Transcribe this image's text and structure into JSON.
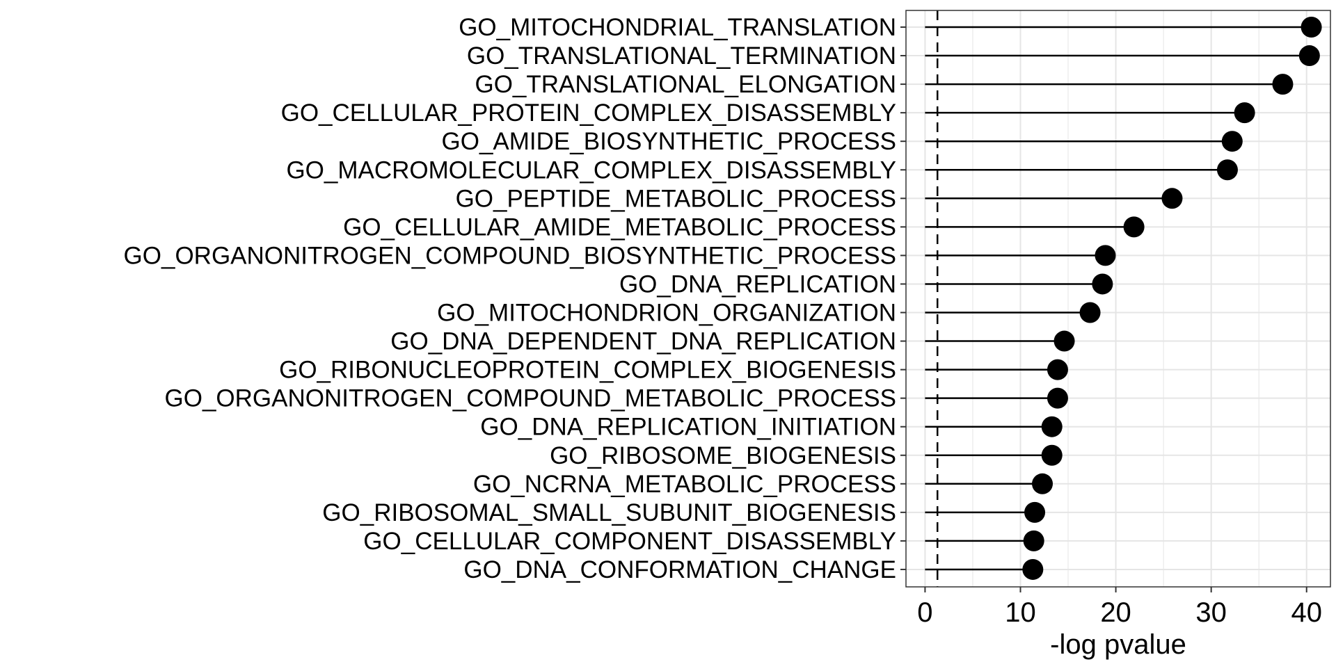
{
  "chart_data": {
    "type": "lollipop",
    "title": "",
    "xlabel": "-log pvalue",
    "ylabel": "",
    "xlim": [
      -2,
      42.5
    ],
    "x_ticks": [
      0,
      10,
      20,
      30,
      40
    ],
    "x_tick_labels": [
      "0",
      "10",
      "20",
      "30",
      "40"
    ],
    "grid": true,
    "reference_line": {
      "x": 1.3,
      "style": "dashed"
    },
    "categories": [
      "GO_MITOCHONDRIAL_TRANSLATION",
      "GO_TRANSLATIONAL_TERMINATION",
      "GO_TRANSLATIONAL_ELONGATION",
      "GO_CELLULAR_PROTEIN_COMPLEX_DISASSEMBLY",
      "GO_AMIDE_BIOSYNTHETIC_PROCESS",
      "GO_MACROMOLECULAR_COMPLEX_DISASSEMBLY",
      "GO_PEPTIDE_METABOLIC_PROCESS",
      "GO_CELLULAR_AMIDE_METABOLIC_PROCESS",
      "GO_ORGANONITROGEN_COMPOUND_BIOSYNTHETIC_PROCESS",
      "GO_DNA_REPLICATION",
      "GO_MITOCHONDRION_ORGANIZATION",
      "GO_DNA_DEPENDENT_DNA_REPLICATION",
      "GO_RIBONUCLEOPROTEIN_COMPLEX_BIOGENESIS",
      "GO_ORGANONITROGEN_COMPOUND_METABOLIC_PROCESS",
      "GO_DNA_REPLICATION_INITIATION",
      "GO_RIBOSOME_BIOGENESIS",
      "GO_NCRNA_METABOLIC_PROCESS",
      "GO_RIBOSOMAL_SMALL_SUBUNIT_BIOGENESIS",
      "GO_CELLULAR_COMPONENT_DISASSEMBLY",
      "GO_DNA_CONFORMATION_CHANGE"
    ],
    "values": [
      40.5,
      40.3,
      37.5,
      33.5,
      32.2,
      31.7,
      25.9,
      21.9,
      18.9,
      18.6,
      17.3,
      14.6,
      13.9,
      13.9,
      13.3,
      13.3,
      12.3,
      11.5,
      11.4,
      11.3
    ],
    "colors": {
      "marker": "#000000",
      "stem": "#000000",
      "grid": "#e5e5e5",
      "border": "#333333"
    }
  }
}
